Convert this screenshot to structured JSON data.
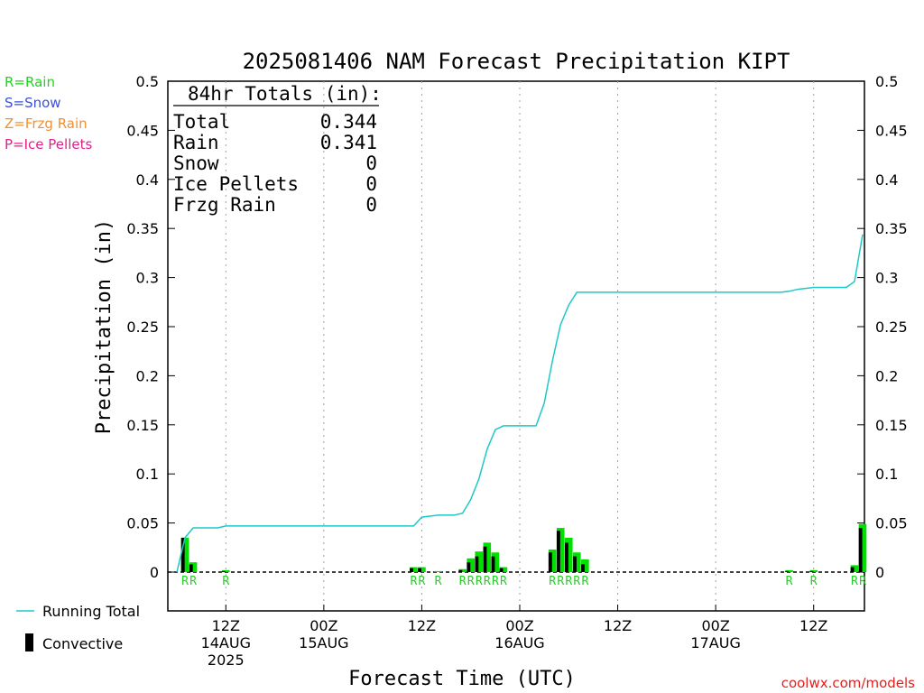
{
  "chart_data": {
    "type": "bar+line",
    "title": "2025081406 NAM Forecast Precipitation KIPT",
    "xlabel": "Forecast Time (UTC)",
    "ylabel": "Precipitation (in)",
    "ylim": [
      0,
      0.5
    ],
    "yticks": [
      "0",
      "0.05",
      "0.1",
      "0.15",
      "0.2",
      "0.25",
      "0.3",
      "0.35",
      "0.4",
      "0.45",
      "0.5"
    ],
    "xlim_hours": [
      0,
      84
    ],
    "xticks": [
      {
        "hour": 6,
        "line1": "12Z",
        "line2": "14AUG",
        "line3": "2025"
      },
      {
        "hour": 18,
        "line1": "00Z",
        "line2": "15AUG",
        "line3": ""
      },
      {
        "hour": 30,
        "line1": "12Z",
        "line2": "",
        "line3": ""
      },
      {
        "hour": 42,
        "line1": "00Z",
        "line2": "16AUG",
        "line3": ""
      },
      {
        "hour": 54,
        "line1": "12Z",
        "line2": "",
        "line3": ""
      },
      {
        "hour": 66,
        "line1": "00Z",
        "line2": "17AUG",
        "line3": ""
      },
      {
        "hour": 78,
        "line1": "12Z",
        "line2": "",
        "line3": ""
      }
    ],
    "bars": [
      {
        "hour": 1,
        "total": 0.035,
        "convective": 0.035,
        "type": "R"
      },
      {
        "hour": 2,
        "total": 0.01,
        "convective": 0.008,
        "type": "R"
      },
      {
        "hour": 6,
        "total": 0.002,
        "convective": 0.001,
        "type": "R"
      },
      {
        "hour": 29,
        "total": 0.005,
        "convective": 0.004,
        "type": "R"
      },
      {
        "hour": 30,
        "total": 0.005,
        "convective": 0.004,
        "type": "R"
      },
      {
        "hour": 32,
        "total": 0.001,
        "convective": 0.0,
        "type": "R"
      },
      {
        "hour": 35,
        "total": 0.003,
        "convective": 0.002,
        "type": "R"
      },
      {
        "hour": 36,
        "total": 0.014,
        "convective": 0.01,
        "type": "R"
      },
      {
        "hour": 37,
        "total": 0.021,
        "convective": 0.016,
        "type": "R"
      },
      {
        "hour": 38,
        "total": 0.03,
        "convective": 0.026,
        "type": "R"
      },
      {
        "hour": 39,
        "total": 0.02,
        "convective": 0.016,
        "type": "R"
      },
      {
        "hour": 40,
        "total": 0.005,
        "convective": 0.004,
        "type": "R"
      },
      {
        "hour": 46,
        "total": 0.023,
        "convective": 0.02,
        "type": "R"
      },
      {
        "hour": 47,
        "total": 0.045,
        "convective": 0.042,
        "type": "R"
      },
      {
        "hour": 48,
        "total": 0.035,
        "convective": 0.03,
        "type": "R"
      },
      {
        "hour": 49,
        "total": 0.02,
        "convective": 0.016,
        "type": "R"
      },
      {
        "hour": 50,
        "total": 0.013,
        "convective": 0.008,
        "type": "R"
      },
      {
        "hour": 75,
        "total": 0.002,
        "convective": 0.001,
        "type": "R"
      },
      {
        "hour": 78,
        "total": 0.002,
        "convective": 0.001,
        "type": "R"
      },
      {
        "hour": 83,
        "total": 0.007,
        "convective": 0.005,
        "type": "R"
      },
      {
        "hour": 84,
        "total": 0.049,
        "convective": 0.045,
        "type": "R"
      }
    ],
    "running_total": {
      "name": "Running Total",
      "hours": [
        0,
        1,
        2,
        5,
        6,
        29,
        30,
        31,
        32,
        34,
        35,
        36,
        37,
        38,
        39,
        40,
        41,
        44,
        45,
        46,
        47,
        48,
        49,
        50,
        51,
        60,
        72,
        74,
        75,
        76,
        77,
        78,
        79,
        82,
        83,
        84
      ],
      "values": [
        0,
        0.035,
        0.045,
        0.045,
        0.047,
        0.047,
        0.056,
        0.057,
        0.058,
        0.058,
        0.06,
        0.074,
        0.095,
        0.125,
        0.145,
        0.149,
        0.149,
        0.149,
        0.172,
        0.215,
        0.252,
        0.272,
        0.285,
        0.285,
        0.285,
        0.285,
        0.285,
        0.285,
        0.286,
        0.288,
        0.289,
        0.29,
        0.29,
        0.29,
        0.296,
        0.344
      ]
    },
    "precip_type_labels": {
      "text": "R",
      "hours": [
        1,
        2,
        6,
        29,
        30,
        32,
        35,
        36,
        37,
        38,
        39,
        40,
        46,
        47,
        48,
        49,
        50,
        75,
        78,
        83,
        84
      ]
    },
    "totals_box": {
      "header": "84hr Totals (in):",
      "rows": [
        {
          "label": "Total",
          "value": "0.344"
        },
        {
          "label": "Rain",
          "value": "0.341"
        },
        {
          "label": "Snow",
          "value": "0"
        },
        {
          "label": "Ice Pellets",
          "value": "0"
        },
        {
          "label": "Frzg Rain",
          "value": "0"
        }
      ]
    },
    "type_legend": [
      {
        "text": "R=Rain",
        "color": "#1fd41f"
      },
      {
        "text": "S=Snow",
        "color": "#3c4fdc"
      },
      {
        "text": "Z=Frzg Rain",
        "color": "#f09030"
      },
      {
        "text": "P=Ice Pellets",
        "color": "#e0208c"
      }
    ],
    "series_legend": [
      {
        "name": "Running Total",
        "color": "#1ec8c8"
      },
      {
        "name": "Convective",
        "color": "#000000"
      }
    ],
    "colors": {
      "bar": "#00e000",
      "convective": "#000000",
      "line": "#1ec8c8",
      "rain_label": "#1fd41f",
      "credit": "#e02020"
    },
    "credit": "coolwx.com/models"
  }
}
